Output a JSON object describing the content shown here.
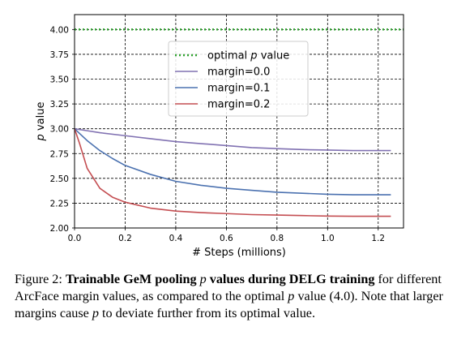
{
  "chart_data": {
    "type": "line",
    "xlabel": "# Steps (millions)",
    "ylabel_italic": "p",
    "ylabel_rest": " value",
    "xlim": [
      0.0,
      1.3
    ],
    "ylim": [
      2.0,
      4.15
    ],
    "xticks": [
      0.0,
      0.2,
      0.4,
      0.6,
      0.8,
      1.0,
      1.2
    ],
    "xtick_labels": [
      "0.0",
      "0.2",
      "0.4",
      "0.6",
      "0.8",
      "1.0",
      "1.2"
    ],
    "yticks": [
      2.0,
      2.25,
      2.5,
      2.75,
      3.0,
      3.25,
      3.5,
      3.75,
      4.0
    ],
    "ytick_labels": [
      "2.00",
      "2.25",
      "2.50",
      "2.75",
      "3.00",
      "3.25",
      "3.50",
      "3.75",
      "4.00"
    ],
    "grid": true,
    "legend_placement": "upper center",
    "series": [
      {
        "name": "optimal p value",
        "legend_label": {
          "pre": "optimal ",
          "italic": "p",
          "post": " value"
        },
        "color": "#2ca02c",
        "style": "dotted",
        "x": [
          0.0,
          1.3
        ],
        "y": [
          4.0,
          4.0
        ]
      },
      {
        "name": "margin=0.0",
        "legend_label": {
          "pre": "margin=0.0",
          "italic": "",
          "post": ""
        },
        "color": "#8172b2",
        "style": "solid",
        "x": [
          0.0,
          0.05,
          0.1,
          0.2,
          0.3,
          0.4,
          0.5,
          0.6,
          0.7,
          0.8,
          0.9,
          1.0,
          1.1,
          1.25
        ],
        "y": [
          3.0,
          2.98,
          2.96,
          2.93,
          2.9,
          2.87,
          2.85,
          2.83,
          2.81,
          2.8,
          2.79,
          2.785,
          2.78,
          2.78
        ]
      },
      {
        "name": "margin=0.1",
        "legend_label": {
          "pre": "margin=0.1",
          "italic": "",
          "post": ""
        },
        "color": "#4c72b0",
        "style": "solid",
        "x": [
          0.0,
          0.05,
          0.1,
          0.15,
          0.2,
          0.3,
          0.4,
          0.5,
          0.6,
          0.7,
          0.8,
          0.9,
          1.0,
          1.1,
          1.25
        ],
        "y": [
          3.0,
          2.88,
          2.78,
          2.7,
          2.63,
          2.54,
          2.47,
          2.43,
          2.4,
          2.38,
          2.36,
          2.35,
          2.34,
          2.335,
          2.335
        ]
      },
      {
        "name": "margin=0.2",
        "legend_label": {
          "pre": "margin=0.2",
          "italic": "",
          "post": ""
        },
        "color": "#c44e52",
        "style": "solid",
        "x": [
          0.0,
          0.02,
          0.05,
          0.1,
          0.15,
          0.2,
          0.3,
          0.4,
          0.5,
          0.6,
          0.7,
          0.8,
          0.9,
          1.0,
          1.1,
          1.25
        ],
        "y": [
          3.0,
          2.85,
          2.6,
          2.4,
          2.31,
          2.26,
          2.2,
          2.17,
          2.155,
          2.145,
          2.135,
          2.13,
          2.125,
          2.12,
          2.118,
          2.118
        ]
      }
    ]
  },
  "caption": {
    "prefix": "Figure 2: ",
    "bold_1": "Trainable GeM pooling ",
    "italic_p_1": "p",
    "bold_2": " values during DELG training",
    "text_1": " for different ArcFace margin values, as compared to the optimal ",
    "italic_p_2": "p",
    "text_2": " value (4.0). Note that larger margins cause ",
    "italic_p_3": "p",
    "text_3": " to deviate further from its optimal value."
  }
}
